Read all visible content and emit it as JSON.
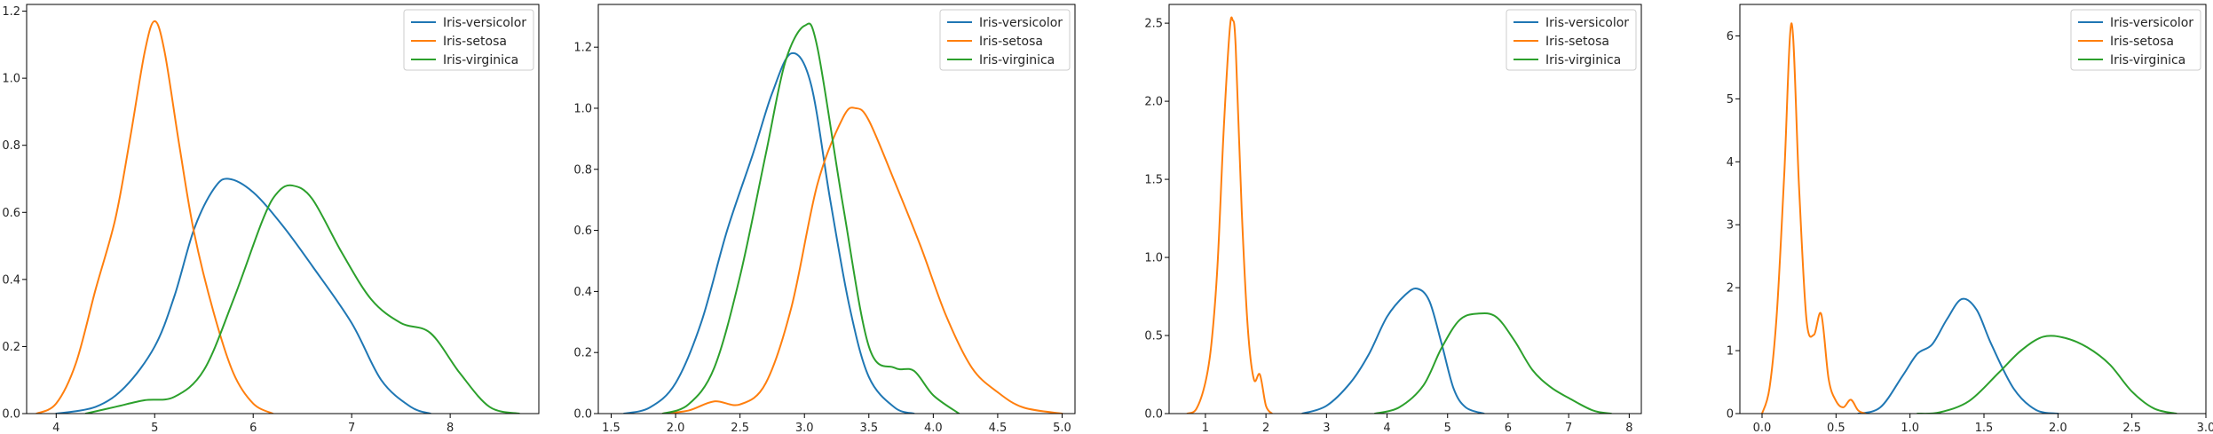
{
  "chart_data": [
    {
      "type": "line",
      "title": "",
      "xlabel": "",
      "ylabel": "",
      "xlim": [
        3.7,
        8.9
      ],
      "ylim": [
        0,
        1.22
      ],
      "xticks": [
        {
          "v": 4,
          "label": "4"
        },
        {
          "v": 5,
          "label": "5"
        },
        {
          "v": 6,
          "label": "6"
        },
        {
          "v": 7,
          "label": "7"
        },
        {
          "v": 8,
          "label": "8"
        }
      ],
      "yticks": [
        {
          "v": 0,
          "label": "0.0"
        },
        {
          "v": 0.2,
          "label": "0.2"
        },
        {
          "v": 0.4,
          "label": "0.4"
        },
        {
          "v": 0.6,
          "label": "0.6"
        },
        {
          "v": 0.8,
          "label": "0.8"
        },
        {
          "v": 1.0,
          "label": "1.0"
        },
        {
          "v": 1.2,
          "label": "1.2"
        }
      ],
      "legend": "top-right",
      "grid": false,
      "series": [
        {
          "name": "Iris-versicolor",
          "color": "#1f77b4",
          "x": [
            4.0,
            4.4,
            4.7,
            5.0,
            5.2,
            5.4,
            5.6,
            5.75,
            6.0,
            6.3,
            6.6,
            7.0,
            7.3,
            7.6,
            7.8
          ],
          "y": [
            0,
            0.02,
            0.08,
            0.2,
            0.35,
            0.55,
            0.67,
            0.7,
            0.66,
            0.56,
            0.44,
            0.27,
            0.1,
            0.02,
            0
          ]
        },
        {
          "name": "Iris-setosa",
          "color": "#ff7f0e",
          "x": [
            3.8,
            4.0,
            4.2,
            4.4,
            4.6,
            4.75,
            4.9,
            5.0,
            5.1,
            5.25,
            5.4,
            5.6,
            5.8,
            6.0,
            6.2
          ],
          "y": [
            0,
            0.03,
            0.15,
            0.37,
            0.58,
            0.82,
            1.08,
            1.17,
            1.08,
            0.8,
            0.54,
            0.3,
            0.12,
            0.03,
            0
          ]
        },
        {
          "name": "Iris-virginica",
          "color": "#2ca02c",
          "x": [
            4.3,
            4.6,
            4.9,
            5.2,
            5.5,
            5.8,
            6.1,
            6.25,
            6.4,
            6.6,
            6.9,
            7.2,
            7.5,
            7.8,
            8.1,
            8.4,
            8.7
          ],
          "y": [
            0,
            0.02,
            0.04,
            0.05,
            0.13,
            0.34,
            0.58,
            0.66,
            0.68,
            0.64,
            0.48,
            0.34,
            0.27,
            0.24,
            0.12,
            0.02,
            0
          ]
        }
      ]
    },
    {
      "type": "line",
      "title": "",
      "xlabel": "",
      "ylabel": "",
      "xlim": [
        1.4,
        5.1
      ],
      "ylim": [
        0,
        1.34
      ],
      "xticks": [
        {
          "v": 1.5,
          "label": "1.5"
        },
        {
          "v": 2.0,
          "label": "2.0"
        },
        {
          "v": 2.5,
          "label": "2.5"
        },
        {
          "v": 3.0,
          "label": "3.0"
        },
        {
          "v": 3.5,
          "label": "3.5"
        },
        {
          "v": 4.0,
          "label": "4.0"
        },
        {
          "v": 4.5,
          "label": "4.5"
        },
        {
          "v": 5.0,
          "label": "5.0"
        }
      ],
      "yticks": [
        {
          "v": 0,
          "label": "0.0"
        },
        {
          "v": 0.2,
          "label": "0.2"
        },
        {
          "v": 0.4,
          "label": "0.4"
        },
        {
          "v": 0.6,
          "label": "0.6"
        },
        {
          "v": 0.8,
          "label": "0.8"
        },
        {
          "v": 1.0,
          "label": "1.0"
        },
        {
          "v": 1.2,
          "label": "1.2"
        }
      ],
      "legend": "top-right",
      "grid": false,
      "series": [
        {
          "name": "Iris-versicolor",
          "color": "#1f77b4",
          "x": [
            1.6,
            1.8,
            2.0,
            2.2,
            2.4,
            2.6,
            2.75,
            2.9,
            3.05,
            3.2,
            3.35,
            3.5,
            3.7,
            3.85
          ],
          "y": [
            0,
            0.02,
            0.1,
            0.3,
            0.6,
            0.85,
            1.05,
            1.18,
            1.08,
            0.7,
            0.35,
            0.12,
            0.02,
            0
          ]
        },
        {
          "name": "Iris-setosa",
          "color": "#ff7f0e",
          "x": [
            1.9,
            2.1,
            2.3,
            2.5,
            2.7,
            2.9,
            3.1,
            3.3,
            3.4,
            3.5,
            3.7,
            3.9,
            4.1,
            4.3,
            4.5,
            4.7,
            5.0
          ],
          "y": [
            0,
            0.01,
            0.04,
            0.03,
            0.1,
            0.35,
            0.75,
            0.97,
            1.0,
            0.96,
            0.76,
            0.55,
            0.32,
            0.15,
            0.07,
            0.02,
            0
          ]
        },
        {
          "name": "Iris-virginica",
          "color": "#2ca02c",
          "x": [
            1.9,
            2.1,
            2.3,
            2.5,
            2.7,
            2.85,
            3.0,
            3.1,
            3.3,
            3.5,
            3.7,
            3.85,
            4.0,
            4.2
          ],
          "y": [
            0,
            0.03,
            0.15,
            0.45,
            0.85,
            1.15,
            1.27,
            1.2,
            0.68,
            0.22,
            0.15,
            0.14,
            0.06,
            0
          ]
        }
      ]
    },
    {
      "type": "line",
      "title": "",
      "xlabel": "",
      "ylabel": "",
      "xlim": [
        0.4,
        8.2
      ],
      "ylim": [
        0,
        2.62
      ],
      "xticks": [
        {
          "v": 1,
          "label": "1"
        },
        {
          "v": 2,
          "label": "2"
        },
        {
          "v": 3,
          "label": "3"
        },
        {
          "v": 4,
          "label": "4"
        },
        {
          "v": 5,
          "label": "5"
        },
        {
          "v": 6,
          "label": "6"
        },
        {
          "v": 7,
          "label": "7"
        },
        {
          "v": 8,
          "label": "8"
        }
      ],
      "yticks": [
        {
          "v": 0,
          "label": "0.0"
        },
        {
          "v": 0.5,
          "label": "0.5"
        },
        {
          "v": 1.0,
          "label": "1.0"
        },
        {
          "v": 1.5,
          "label": "1.5"
        },
        {
          "v": 2.0,
          "label": "2.0"
        },
        {
          "v": 2.5,
          "label": "2.5"
        }
      ],
      "legend": "top-right",
      "grid": false,
      "series": [
        {
          "name": "Iris-versicolor",
          "color": "#1f77b4",
          "x": [
            2.6,
            3.0,
            3.4,
            3.7,
            4.0,
            4.3,
            4.5,
            4.7,
            4.9,
            5.1,
            5.3,
            5.6
          ],
          "y": [
            0,
            0.05,
            0.2,
            0.38,
            0.62,
            0.76,
            0.8,
            0.72,
            0.45,
            0.16,
            0.04,
            0
          ]
        },
        {
          "name": "Iris-setosa",
          "color": "#ff7f0e",
          "x": [
            0.7,
            0.85,
            1.0,
            1.1,
            1.2,
            1.3,
            1.4,
            1.45,
            1.5,
            1.6,
            1.7,
            1.8,
            1.9,
            2.0,
            2.1
          ],
          "y": [
            0,
            0.03,
            0.2,
            0.45,
            0.95,
            1.8,
            2.45,
            2.52,
            2.35,
            1.3,
            0.55,
            0.22,
            0.25,
            0.05,
            0
          ]
        },
        {
          "name": "Iris-virginica",
          "color": "#2ca02c",
          "x": [
            3.8,
            4.2,
            4.6,
            4.9,
            5.2,
            5.5,
            5.8,
            6.1,
            6.4,
            6.7,
            7.0,
            7.4,
            7.7
          ],
          "y": [
            0,
            0.04,
            0.18,
            0.42,
            0.6,
            0.64,
            0.62,
            0.47,
            0.28,
            0.17,
            0.1,
            0.02,
            0
          ]
        }
      ]
    },
    {
      "type": "line",
      "title": "",
      "xlabel": "",
      "ylabel": "",
      "xlim": [
        -0.15,
        3.0
      ],
      "ylim": [
        0,
        6.5
      ],
      "xticks": [
        {
          "v": 0.0,
          "label": "0.0"
        },
        {
          "v": 0.5,
          "label": "0.5"
        },
        {
          "v": 1.0,
          "label": "1.0"
        },
        {
          "v": 1.5,
          "label": "1.5"
        },
        {
          "v": 2.0,
          "label": "2.0"
        },
        {
          "v": 2.5,
          "label": "2.5"
        },
        {
          "v": 3.0,
          "label": "3.0"
        }
      ],
      "yticks": [
        {
          "v": 0,
          "label": "0"
        },
        {
          "v": 1,
          "label": "1"
        },
        {
          "v": 2,
          "label": "2"
        },
        {
          "v": 3,
          "label": "3"
        },
        {
          "v": 4,
          "label": "4"
        },
        {
          "v": 5,
          "label": "5"
        },
        {
          "v": 6,
          "label": "6"
        }
      ],
      "legend": "top-right",
      "grid": false,
      "series": [
        {
          "name": "Iris-versicolor",
          "color": "#1f77b4",
          "x": [
            0.65,
            0.8,
            0.95,
            1.05,
            1.15,
            1.25,
            1.35,
            1.45,
            1.55,
            1.7,
            1.85,
            2.0
          ],
          "y": [
            0,
            0.1,
            0.6,
            0.95,
            1.1,
            1.5,
            1.82,
            1.65,
            1.1,
            0.4,
            0.06,
            0
          ]
        },
        {
          "name": "Iris-setosa",
          "color": "#ff7f0e",
          "x": [
            0.0,
            0.05,
            0.1,
            0.15,
            0.2,
            0.25,
            0.3,
            0.35,
            0.4,
            0.45,
            0.5,
            0.55,
            0.6,
            0.65,
            0.7
          ],
          "y": [
            0,
            0.4,
            1.6,
            3.8,
            6.2,
            3.6,
            1.5,
            1.25,
            1.58,
            0.55,
            0.2,
            0.1,
            0.22,
            0.05,
            0
          ]
        },
        {
          "name": "Iris-virginica",
          "color": "#2ca02c",
          "x": [
            1.05,
            1.2,
            1.4,
            1.6,
            1.75,
            1.9,
            2.05,
            2.2,
            2.35,
            2.5,
            2.65,
            2.8
          ],
          "y": [
            0,
            0.02,
            0.2,
            0.65,
            1.0,
            1.22,
            1.2,
            1.05,
            0.78,
            0.35,
            0.08,
            0
          ]
        }
      ]
    }
  ]
}
